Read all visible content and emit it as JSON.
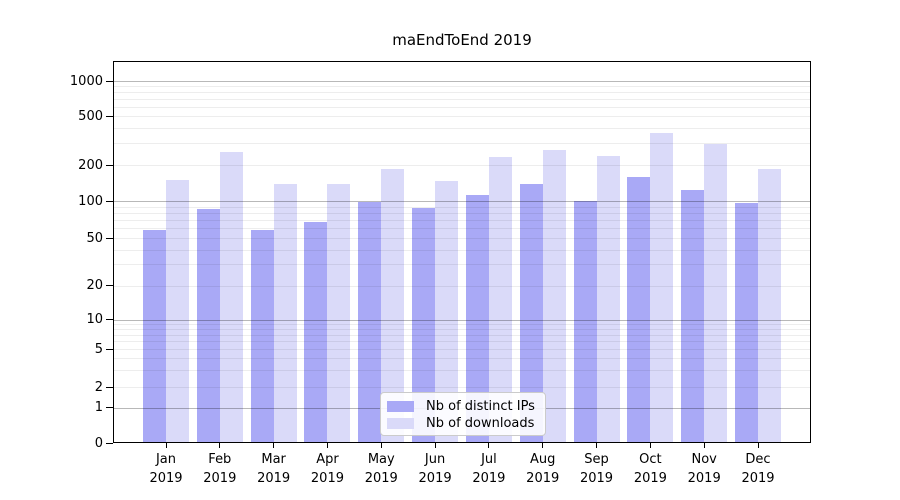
{
  "chart_data": {
    "type": "bar",
    "title": "maEndToEnd 2019",
    "categories": [
      "Jan",
      "Feb",
      "Mar",
      "Apr",
      "May",
      "Jun",
      "Jul",
      "Aug",
      "Sep",
      "Oct",
      "Nov",
      "Dec"
    ],
    "category_year": "2019",
    "series": [
      {
        "name": "Nb of distinct IPs",
        "color": "#a9a9f6",
        "values": [
          58,
          86,
          58,
          68,
          98,
          88,
          112,
          140,
          100,
          158,
          124,
          97
        ]
      },
      {
        "name": "Nb of downloads",
        "color": "#dadaf9",
        "values": [
          150,
          253,
          139,
          140,
          186,
          147,
          231,
          265,
          236,
          365,
          294,
          186
        ]
      }
    ],
    "xlabel": "",
    "ylabel": "",
    "y_scale": "symlog",
    "y_ticks": [
      0,
      1,
      2,
      5,
      10,
      20,
      50,
      100,
      200,
      500,
      1000
    ],
    "ylim": [
      0,
      1500
    ],
    "grid": "horizontal-major-and-minor",
    "legend_position": "lower-center-inside"
  }
}
